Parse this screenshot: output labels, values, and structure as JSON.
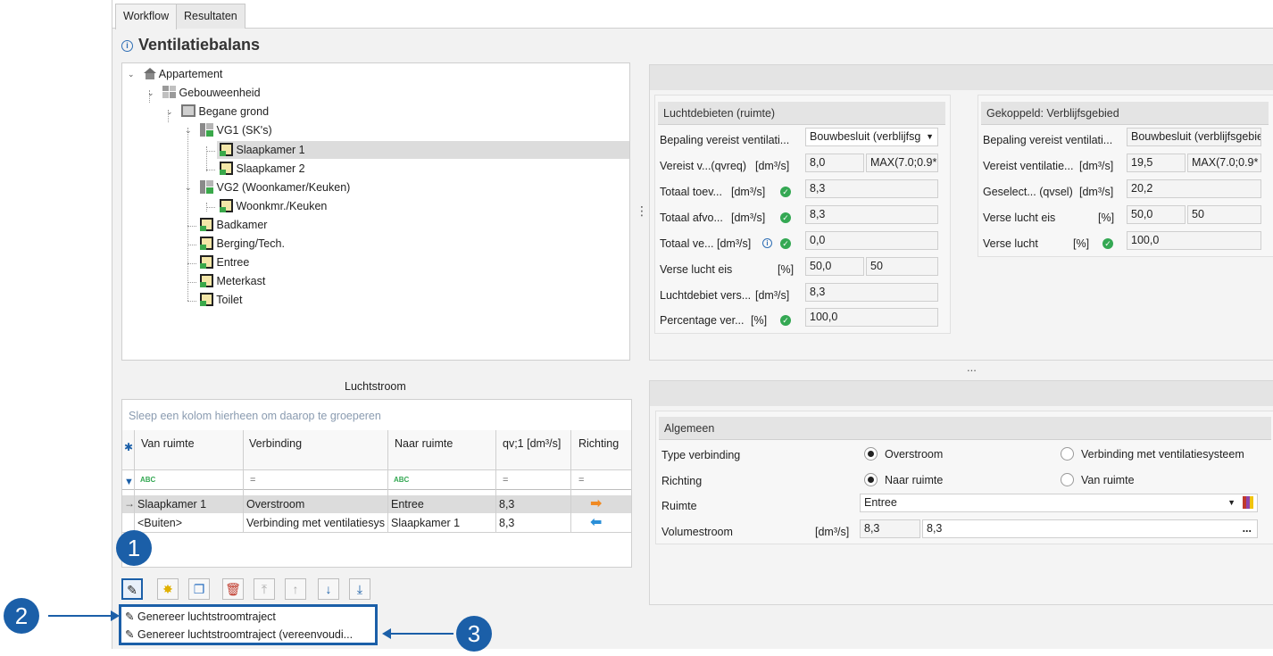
{
  "tabs": [
    {
      "label": "Workflow"
    },
    {
      "label": "Resultaten"
    }
  ],
  "page_title": "Ventilatiebalans",
  "tree": [
    {
      "label": "Appartement",
      "icon": "building-icon"
    },
    {
      "label": "Gebouweenheid",
      "icon": "unit-icon"
    },
    {
      "label": "Begane grond",
      "icon": "floor-icon"
    },
    {
      "label": "VG1 (SK's)",
      "icon": "zone-icon"
    },
    {
      "label": "Slaapkamer 1",
      "icon": "room-icon"
    },
    {
      "label": "Slaapkamer 2",
      "icon": "room-icon"
    },
    {
      "label": "VG2 (Woonkamer/Keuken)",
      "icon": "zone-icon"
    },
    {
      "label": "Woonkmr./Keuken",
      "icon": "room-icon"
    },
    {
      "label": "Badkamer",
      "icon": "room-icon"
    },
    {
      "label": "Berging/Tech.",
      "icon": "room-icon"
    },
    {
      "label": "Entree",
      "icon": "room-icon"
    },
    {
      "label": "Meterkast",
      "icon": "room-icon"
    },
    {
      "label": "Toilet",
      "icon": "room-icon"
    }
  ],
  "luchtdebieten": {
    "header": "Luchtdebieten (ruimte)",
    "rows": [
      {
        "label": "Bepaling vereist ventilati...",
        "unit": "",
        "value": "Bouwbesluit (verblijfsg",
        "extra": ""
      },
      {
        "label": "Vereist v...(qvreq)",
        "unit": "[dm³/s]",
        "value": "8,0",
        "extra": "MAX(7.0;0.9*"
      },
      {
        "label": "Totaal toev...",
        "unit": "[dm³/s]",
        "value": "8,3",
        "extra": ""
      },
      {
        "label": "Totaal afvo...",
        "unit": "[dm³/s]",
        "value": "8,3",
        "extra": ""
      },
      {
        "label": "Totaal ve...",
        "unit": "[dm³/s]",
        "value": "0,0",
        "extra": ""
      },
      {
        "label": "Verse lucht eis",
        "unit": "[%]",
        "value": "50,0",
        "extra": "50"
      },
      {
        "label": "Luchtdebiet vers...",
        "unit": "[dm³/s]",
        "value": "8,3",
        "extra": ""
      },
      {
        "label": "Percentage ver...",
        "unit": "[%]",
        "value": "100,0",
        "extra": ""
      }
    ]
  },
  "gekoppeld": {
    "header": "Gekoppeld: Verblijfsgebied",
    "rows": [
      {
        "label": "Bepaling vereist ventilati...",
        "unit": "",
        "value": "Bouwbesluit (verblijfsgebie",
        "extra": ""
      },
      {
        "label": "Vereist ventilatie...",
        "unit": "[dm³/s]",
        "value": "19,5",
        "extra": "MAX(7.0;0.9*"
      },
      {
        "label": "Geselect... (qvsel)",
        "unit": "[dm³/s]",
        "value": "20,2",
        "extra": ""
      },
      {
        "label": "Verse lucht eis",
        "unit": "[%]",
        "value": "50,0",
        "extra": "50"
      },
      {
        "label": "Verse lucht",
        "unit": "[%]",
        "value": "100,0",
        "extra": ""
      }
    ]
  },
  "splitter_dots": "⋮",
  "splitter_dots_h": "...",
  "luchtstroom": {
    "title": "Luchtstroom",
    "group_hint": "Sleep een kolom hierheen om daarop te groeperen",
    "columns": [
      "Van ruimte",
      "Verbinding",
      "Naar ruimte",
      "qv;1 [dm³/s]",
      "Richting"
    ],
    "rows": [
      {
        "van": "Slaapkamer 1",
        "verbinding": "Overstroom",
        "naar": "Entree",
        "qv": "8,3",
        "richting": "right"
      },
      {
        "van": "<Buiten>",
        "verbinding": "Verbinding met ventilatiesys",
        "naar": "Slaapkamer 1",
        "qv": "8,3",
        "richting": "left"
      }
    ]
  },
  "algemeen": {
    "header": "Algemeen",
    "type_label": "Type verbinding",
    "type_opt1": "Overstroom",
    "type_opt2": "Verbinding met ventilatiesysteem",
    "richting_label": "Richting",
    "richting_opt1": "Naar ruimte",
    "richting_opt2": "Van ruimte",
    "ruimte_label": "Ruimte",
    "ruimte_value": "Entree",
    "volume_label": "Volumestroom",
    "volume_unit": "[dm³/s]",
    "volume_value1": "8,3",
    "volume_value2": "8,3",
    "volume_btn": "..."
  },
  "menu": {
    "item1": "Genereer luchtstroomtraject",
    "item2": "Genereer luchtstroomtraject (vereenvoudi..."
  },
  "callouts": [
    "1",
    "2",
    "3"
  ],
  "colors": {
    "accent": "#1b5fa8",
    "ok": "#34a853",
    "arrow_right": "#f08a24",
    "arrow_left": "#2a8fd8"
  }
}
